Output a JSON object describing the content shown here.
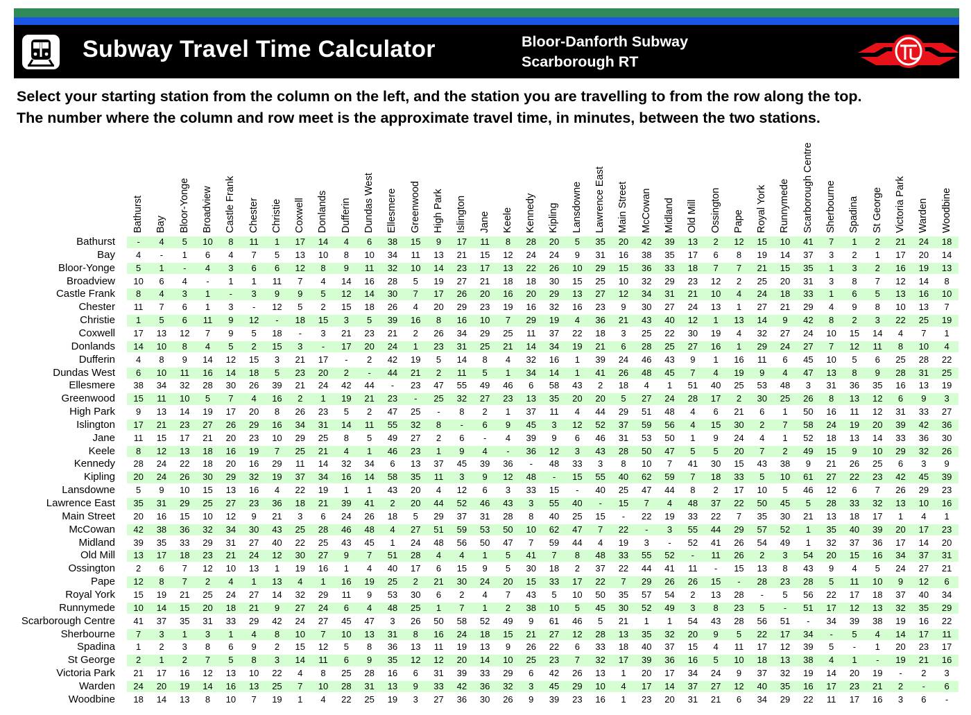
{
  "header": {
    "title": "Subway Travel Time Calculator",
    "line_1": "Bloor-Danforth Subway",
    "line_2": "Scarborough RT",
    "icon": "subway-train-icon",
    "logo": "ttc-logo",
    "colors": {
      "green_stripe": "#2e8b57",
      "blue_stripe": "#1a55e8",
      "banner": "#000000",
      "logo_red": "#e8121b",
      "row_highlight": "#d5ffd3"
    }
  },
  "instructions": {
    "line_1": "Select your starting station from the column on the left, and the station you are travelling to from the row along the top.",
    "line_2": "The number where the column and row meet is the approximate travel time, in minutes, between the two stations."
  },
  "stations": [
    "Bathurst",
    "Bay",
    "Bloor-Yonge",
    "Broadview",
    "Castle Frank",
    "Chester",
    "Christie",
    "Coxwell",
    "Donlands",
    "Dufferin",
    "Dundas West",
    "Ellesmere",
    "Greenwood",
    "High Park",
    "Islington",
    "Jane",
    "Keele",
    "Kennedy",
    "Kipling",
    "Lansdowne",
    "Lawrence East",
    "Main Street",
    "McCowan",
    "Midland",
    "Old Mill",
    "Ossington",
    "Pape",
    "Royal York",
    "Runnymede",
    "Scarborough Centre",
    "Sherbourne",
    "Spadina",
    "St George",
    "Victoria Park",
    "Warden",
    "Woodbine"
  ],
  "matrix": [
    [
      "-",
      "4",
      "5",
      "10",
      "8",
      "11",
      "1",
      "17",
      "14",
      "4",
      "6",
      "38",
      "15",
      "9",
      "17",
      "11",
      "8",
      "28",
      "20",
      "5",
      "35",
      "20",
      "42",
      "39",
      "13",
      "2",
      "12",
      "15",
      "10",
      "41",
      "7",
      "1",
      "2",
      "21",
      "24",
      "18"
    ],
    [
      "4",
      "-",
      "1",
      "6",
      "4",
      "7",
      "5",
      "13",
      "10",
      "8",
      "10",
      "34",
      "11",
      "13",
      "21",
      "15",
      "12",
      "24",
      "24",
      "9",
      "31",
      "16",
      "38",
      "35",
      "17",
      "6",
      "8",
      "19",
      "14",
      "37",
      "3",
      "2",
      "1",
      "17",
      "20",
      "14"
    ],
    [
      "5",
      "1",
      "-",
      "4",
      "3",
      "6",
      "6",
      "12",
      "8",
      "9",
      "11",
      "32",
      "10",
      "14",
      "23",
      "17",
      "13",
      "22",
      "26",
      "10",
      "29",
      "15",
      "36",
      "33",
      "18",
      "7",
      "7",
      "21",
      "15",
      "35",
      "1",
      "3",
      "2",
      "16",
      "19",
      "13"
    ],
    [
      "10",
      "6",
      "4",
      "-",
      "1",
      "1",
      "11",
      "7",
      "4",
      "14",
      "16",
      "28",
      "5",
      "19",
      "27",
      "21",
      "18",
      "18",
      "30",
      "15",
      "25",
      "10",
      "32",
      "29",
      "23",
      "12",
      "2",
      "25",
      "20",
      "31",
      "3",
      "8",
      "7",
      "12",
      "14",
      "8"
    ],
    [
      "8",
      "4",
      "3",
      "1",
      "-",
      "3",
      "9",
      "9",
      "5",
      "12",
      "14",
      "30",
      "7",
      "17",
      "26",
      "20",
      "16",
      "20",
      "29",
      "13",
      "27",
      "12",
      "34",
      "31",
      "21",
      "10",
      "4",
      "24",
      "18",
      "33",
      "1",
      "6",
      "5",
      "13",
      "16",
      "10"
    ],
    [
      "11",
      "7",
      "6",
      "1",
      "3",
      "-",
      "12",
      "5",
      "2",
      "15",
      "18",
      "26",
      "4",
      "20",
      "29",
      "23",
      "19",
      "16",
      "32",
      "16",
      "23",
      "9",
      "30",
      "27",
      "24",
      "13",
      "1",
      "27",
      "21",
      "29",
      "4",
      "9",
      "8",
      "10",
      "13",
      "7"
    ],
    [
      "1",
      "5",
      "6",
      "11",
      "9",
      "12",
      "-",
      "18",
      "15",
      "3",
      "5",
      "39",
      "16",
      "8",
      "16",
      "10",
      "7",
      "29",
      "19",
      "4",
      "36",
      "21",
      "43",
      "40",
      "12",
      "1",
      "13",
      "14",
      "9",
      "42",
      "8",
      "2",
      "3",
      "22",
      "25",
      "19"
    ],
    [
      "17",
      "13",
      "12",
      "7",
      "9",
      "5",
      "18",
      "-",
      "3",
      "21",
      "23",
      "21",
      "2",
      "26",
      "34",
      "29",
      "25",
      "11",
      "37",
      "22",
      "18",
      "3",
      "25",
      "22",
      "30",
      "19",
      "4",
      "32",
      "27",
      "24",
      "10",
      "15",
      "14",
      "4",
      "7",
      "1"
    ],
    [
      "14",
      "10",
      "8",
      "4",
      "5",
      "2",
      "15",
      "3",
      "-",
      "17",
      "20",
      "24",
      "1",
      "23",
      "31",
      "25",
      "21",
      "14",
      "34",
      "19",
      "21",
      "6",
      "28",
      "25",
      "27",
      "16",
      "1",
      "29",
      "24",
      "27",
      "7",
      "12",
      "11",
      "8",
      "10",
      "4"
    ],
    [
      "4",
      "8",
      "9",
      "14",
      "12",
      "15",
      "3",
      "21",
      "17",
      "-",
      "2",
      "42",
      "19",
      "5",
      "14",
      "8",
      "4",
      "32",
      "16",
      "1",
      "39",
      "24",
      "46",
      "43",
      "9",
      "1",
      "16",
      "11",
      "6",
      "45",
      "10",
      "5",
      "6",
      "25",
      "28",
      "22"
    ],
    [
      "6",
      "10",
      "11",
      "16",
      "14",
      "18",
      "5",
      "23",
      "20",
      "2",
      "-",
      "44",
      "21",
      "2",
      "11",
      "5",
      "1",
      "34",
      "14",
      "1",
      "41",
      "26",
      "48",
      "45",
      "7",
      "4",
      "19",
      "9",
      "4",
      "47",
      "13",
      "8",
      "9",
      "28",
      "31",
      "25"
    ],
    [
      "38",
      "34",
      "32",
      "28",
      "30",
      "26",
      "39",
      "21",
      "24",
      "42",
      "44",
      "-",
      "23",
      "47",
      "55",
      "49",
      "46",
      "6",
      "58",
      "43",
      "2",
      "18",
      "4",
      "1",
      "51",
      "40",
      "25",
      "53",
      "48",
      "3",
      "31",
      "36",
      "35",
      "16",
      "13",
      "19"
    ],
    [
      "15",
      "11",
      "10",
      "5",
      "7",
      "4",
      "16",
      "2",
      "1",
      "19",
      "21",
      "23",
      "-",
      "25",
      "32",
      "27",
      "23",
      "13",
      "35",
      "20",
      "20",
      "5",
      "27",
      "24",
      "28",
      "17",
      "2",
      "30",
      "25",
      "26",
      "8",
      "13",
      "12",
      "6",
      "9",
      "3"
    ],
    [
      "9",
      "13",
      "14",
      "19",
      "17",
      "20",
      "8",
      "26",
      "23",
      "5",
      "2",
      "47",
      "25",
      "-",
      "8",
      "2",
      "1",
      "37",
      "11",
      "4",
      "44",
      "29",
      "51",
      "48",
      "4",
      "6",
      "21",
      "6",
      "1",
      "50",
      "16",
      "11",
      "12",
      "31",
      "33",
      "27"
    ],
    [
      "17",
      "21",
      "23",
      "27",
      "26",
      "29",
      "16",
      "34",
      "31",
      "14",
      "11",
      "55",
      "32",
      "8",
      "-",
      "6",
      "9",
      "45",
      "3",
      "12",
      "52",
      "37",
      "59",
      "56",
      "4",
      "15",
      "30",
      "2",
      "7",
      "58",
      "24",
      "19",
      "20",
      "39",
      "42",
      "36"
    ],
    [
      "11",
      "15",
      "17",
      "21",
      "20",
      "23",
      "10",
      "29",
      "25",
      "8",
      "5",
      "49",
      "27",
      "2",
      "6",
      "-",
      "4",
      "39",
      "9",
      "6",
      "46",
      "31",
      "53",
      "50",
      "1",
      "9",
      "24",
      "4",
      "1",
      "52",
      "18",
      "13",
      "14",
      "33",
      "36",
      "30"
    ],
    [
      "8",
      "12",
      "13",
      "18",
      "16",
      "19",
      "7",
      "25",
      "21",
      "4",
      "1",
      "46",
      "23",
      "1",
      "9",
      "4",
      "-",
      "36",
      "12",
      "3",
      "43",
      "28",
      "50",
      "47",
      "5",
      "5",
      "20",
      "7",
      "2",
      "49",
      "15",
      "9",
      "10",
      "29",
      "32",
      "26"
    ],
    [
      "28",
      "24",
      "22",
      "18",
      "20",
      "16",
      "29",
      "11",
      "14",
      "32",
      "34",
      "6",
      "13",
      "37",
      "45",
      "39",
      "36",
      "-",
      "48",
      "33",
      "3",
      "8",
      "10",
      "7",
      "41",
      "30",
      "15",
      "43",
      "38",
      "9",
      "21",
      "26",
      "25",
      "6",
      "3",
      "9"
    ],
    [
      "20",
      "24",
      "26",
      "30",
      "29",
      "32",
      "19",
      "37",
      "34",
      "16",
      "14",
      "58",
      "35",
      "11",
      "3",
      "9",
      "12",
      "48",
      "-",
      "15",
      "55",
      "40",
      "62",
      "59",
      "7",
      "18",
      "33",
      "5",
      "10",
      "61",
      "27",
      "22",
      "23",
      "42",
      "45",
      "39"
    ],
    [
      "5",
      "9",
      "10",
      "15",
      "13",
      "16",
      "4",
      "22",
      "19",
      "1",
      "1",
      "43",
      "20",
      "4",
      "12",
      "6",
      "3",
      "33",
      "15",
      "-",
      "40",
      "25",
      "47",
      "44",
      "8",
      "2",
      "17",
      "10",
      "5",
      "46",
      "12",
      "6",
      "7",
      "26",
      "29",
      "23"
    ],
    [
      "35",
      "31",
      "29",
      "25",
      "27",
      "23",
      "36",
      "18",
      "21",
      "39",
      "41",
      "2",
      "20",
      "44",
      "52",
      "46",
      "43",
      "3",
      "55",
      "40",
      "-",
      "15",
      "7",
      "4",
      "48",
      "37",
      "22",
      "50",
      "45",
      "5",
      "28",
      "33",
      "32",
      "13",
      "10",
      "16"
    ],
    [
      "20",
      "16",
      "15",
      "10",
      "12",
      "9",
      "21",
      "3",
      "6",
      "24",
      "26",
      "18",
      "5",
      "29",
      "37",
      "31",
      "28",
      "8",
      "40",
      "25",
      "15",
      "-",
      "22",
      "19",
      "33",
      "22",
      "7",
      "35",
      "30",
      "21",
      "13",
      "18",
      "17",
      "1",
      "4",
      "1"
    ],
    [
      "42",
      "38",
      "36",
      "32",
      "34",
      "30",
      "43",
      "25",
      "28",
      "46",
      "48",
      "4",
      "27",
      "51",
      "59",
      "53",
      "50",
      "10",
      "62",
      "47",
      "7",
      "22",
      "-",
      "3",
      "55",
      "44",
      "29",
      "57",
      "52",
      "1",
      "35",
      "40",
      "39",
      "20",
      "17",
      "23"
    ],
    [
      "39",
      "35",
      "33",
      "29",
      "31",
      "27",
      "40",
      "22",
      "25",
      "43",
      "45",
      "1",
      "24",
      "48",
      "56",
      "50",
      "47",
      "7",
      "59",
      "44",
      "4",
      "19",
      "3",
      "-",
      "52",
      "41",
      "26",
      "54",
      "49",
      "1",
      "32",
      "37",
      "36",
      "17",
      "14",
      "20"
    ],
    [
      "13",
      "17",
      "18",
      "23",
      "21",
      "24",
      "12",
      "30",
      "27",
      "9",
      "7",
      "51",
      "28",
      "4",
      "4",
      "1",
      "5",
      "41",
      "7",
      "8",
      "48",
      "33",
      "55",
      "52",
      "-",
      "11",
      "26",
      "2",
      "3",
      "54",
      "20",
      "15",
      "16",
      "34",
      "37",
      "31"
    ],
    [
      "2",
      "6",
      "7",
      "12",
      "10",
      "13",
      "1",
      "19",
      "16",
      "1",
      "4",
      "40",
      "17",
      "6",
      "15",
      "9",
      "5",
      "30",
      "18",
      "2",
      "37",
      "22",
      "44",
      "41",
      "11",
      "-",
      "15",
      "13",
      "8",
      "43",
      "9",
      "4",
      "5",
      "24",
      "27",
      "21"
    ],
    [
      "12",
      "8",
      "7",
      "2",
      "4",
      "1",
      "13",
      "4",
      "1",
      "16",
      "19",
      "25",
      "2",
      "21",
      "30",
      "24",
      "20",
      "15",
      "33",
      "17",
      "22",
      "7",
      "29",
      "26",
      "26",
      "15",
      "-",
      "28",
      "23",
      "28",
      "5",
      "11",
      "10",
      "9",
      "12",
      "6"
    ],
    [
      "15",
      "19",
      "21",
      "25",
      "24",
      "27",
      "14",
      "32",
      "29",
      "11",
      "9",
      "53",
      "30",
      "6",
      "2",
      "4",
      "7",
      "43",
      "5",
      "10",
      "50",
      "35",
      "57",
      "54",
      "2",
      "13",
      "28",
      "-",
      "5",
      "56",
      "22",
      "17",
      "18",
      "37",
      "40",
      "34"
    ],
    [
      "10",
      "14",
      "15",
      "20",
      "18",
      "21",
      "9",
      "27",
      "24",
      "6",
      "4",
      "48",
      "25",
      "1",
      "7",
      "1",
      "2",
      "38",
      "10",
      "5",
      "45",
      "30",
      "52",
      "49",
      "3",
      "8",
      "23",
      "5",
      "-",
      "51",
      "17",
      "12",
      "13",
      "32",
      "35",
      "29"
    ],
    [
      "41",
      "37",
      "35",
      "31",
      "33",
      "29",
      "42",
      "24",
      "27",
      "45",
      "47",
      "3",
      "26",
      "50",
      "58",
      "52",
      "49",
      "9",
      "61",
      "46",
      "5",
      "21",
      "1",
      "1",
      "54",
      "43",
      "28",
      "56",
      "51",
      "-",
      "34",
      "39",
      "38",
      "19",
      "16",
      "22"
    ],
    [
      "7",
      "3",
      "1",
      "3",
      "1",
      "4",
      "8",
      "10",
      "7",
      "10",
      "13",
      "31",
      "8",
      "16",
      "24",
      "18",
      "15",
      "21",
      "27",
      "12",
      "28",
      "13",
      "35",
      "32",
      "20",
      "9",
      "5",
      "22",
      "17",
      "34",
      "-",
      "5",
      "4",
      "14",
      "17",
      "11"
    ],
    [
      "1",
      "2",
      "3",
      "8",
      "6",
      "9",
      "2",
      "15",
      "12",
      "5",
      "8",
      "36",
      "13",
      "11",
      "19",
      "13",
      "9",
      "26",
      "22",
      "6",
      "33",
      "18",
      "40",
      "37",
      "15",
      "4",
      "11",
      "17",
      "12",
      "39",
      "5",
      "-",
      "1",
      "20",
      "23",
      "17"
    ],
    [
      "2",
      "1",
      "2",
      "7",
      "5",
      "8",
      "3",
      "14",
      "11",
      "6",
      "9",
      "35",
      "12",
      "12",
      "20",
      "14",
      "10",
      "25",
      "23",
      "7",
      "32",
      "17",
      "39",
      "36",
      "16",
      "5",
      "10",
      "18",
      "13",
      "38",
      "4",
      "1",
      "-",
      "19",
      "21",
      "16"
    ],
    [
      "21",
      "17",
      "16",
      "12",
      "13",
      "10",
      "22",
      "4",
      "8",
      "25",
      "28",
      "16",
      "6",
      "31",
      "39",
      "33",
      "29",
      "6",
      "42",
      "26",
      "13",
      "1",
      "20",
      "17",
      "34",
      "24",
      "9",
      "37",
      "32",
      "19",
      "14",
      "20",
      "19",
      "-",
      "2",
      "3"
    ],
    [
      "24",
      "20",
      "19",
      "14",
      "16",
      "13",
      "25",
      "7",
      "10",
      "28",
      "31",
      "13",
      "9",
      "33",
      "42",
      "36",
      "32",
      "3",
      "45",
      "29",
      "10",
      "4",
      "17",
      "14",
      "37",
      "27",
      "12",
      "40",
      "35",
      "16",
      "17",
      "23",
      "21",
      "2",
      "-",
      "6"
    ],
    [
      "18",
      "14",
      "13",
      "8",
      "10",
      "7",
      "19",
      "1",
      "4",
      "22",
      "25",
      "19",
      "3",
      "27",
      "36",
      "30",
      "26",
      "9",
      "39",
      "23",
      "16",
      "1",
      "23",
      "20",
      "31",
      "21",
      "6",
      "34",
      "29",
      "22",
      "11",
      "17",
      "16",
      "3",
      "6",
      "-"
    ]
  ]
}
